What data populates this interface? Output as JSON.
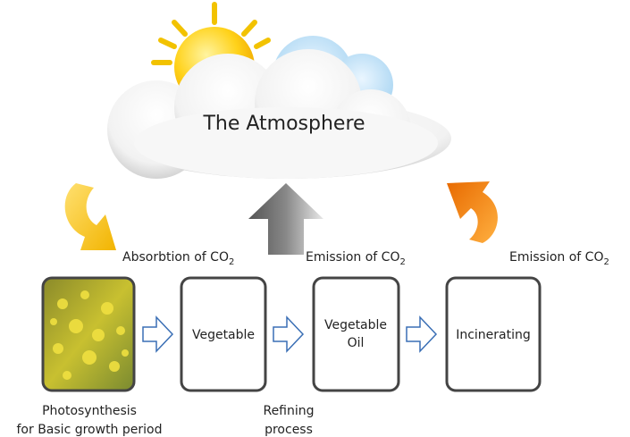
{
  "atmosphere": "The Atmosphere",
  "flows": [
    {
      "text": "Absorbtion of CO",
      "subscript": "2"
    },
    {
      "text": "Emission of CO",
      "subscript": "2"
    },
    {
      "text": "Emission of CO",
      "subscript": "2"
    }
  ],
  "steps": [
    {
      "lines": [
        "Vegetable"
      ]
    },
    {
      "lines": [
        "Vegetable",
        "Oil"
      ]
    },
    {
      "lines": [
        "Incinerating"
      ]
    }
  ],
  "captions": [
    {
      "lines": [
        "Photosynthesis",
        "for Basic growth period"
      ]
    },
    {
      "lines": [
        "Refining",
        "process"
      ]
    }
  ]
}
